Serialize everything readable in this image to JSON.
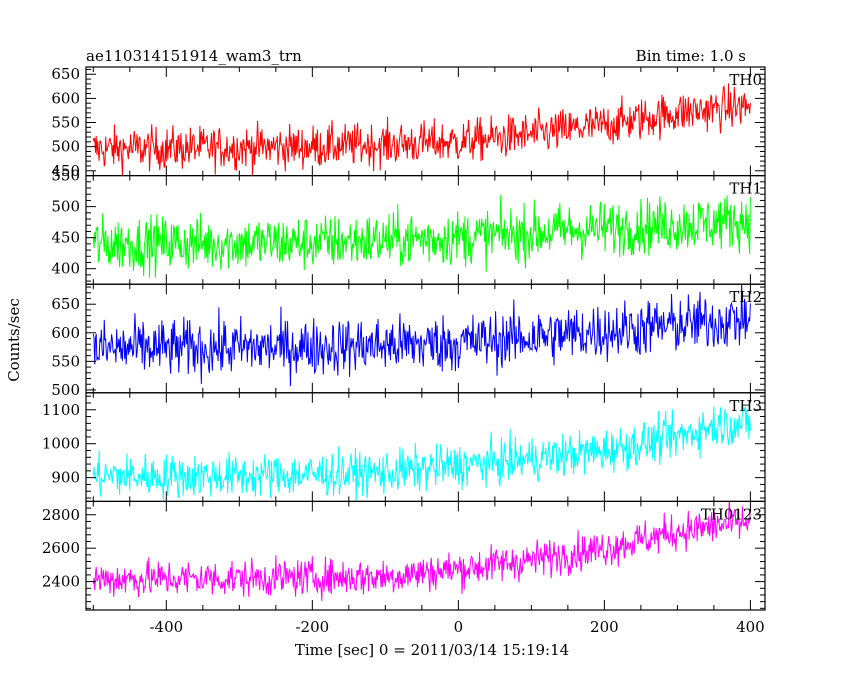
{
  "chart_data": {
    "type": "line",
    "title": "ae110314151914_wam3_trn",
    "bin_time_label": "Bin time: 1.0 s",
    "xlabel": "Time [sec] 0 = 2011/03/14 15:19:14",
    "ylabel": "Counts/sec",
    "xlim": [
      -510,
      420
    ],
    "x_ticks": [
      -400,
      -200,
      0,
      200,
      400
    ],
    "x_start": -500,
    "x_end": 400,
    "panels": [
      {
        "name": "TH0",
        "color": "#ff0000",
        "ylim": [
          440,
          665
        ],
        "y_ticks": [
          450,
          500,
          550,
          600,
          650
        ],
        "trend": [
          [
            -500,
            495
          ],
          [
            -200,
            500
          ],
          [
            0,
            510
          ],
          [
            100,
            525
          ],
          [
            200,
            545
          ],
          [
            300,
            570
          ],
          [
            400,
            585
          ]
        ],
        "noise": 22
      },
      {
        "name": "TH1",
        "color": "#00ff00",
        "ylim": [
          375,
          550
        ],
        "y_ticks": [
          400,
          450,
          500,
          550
        ],
        "trend": [
          [
            -500,
            440
          ],
          [
            -200,
            442
          ],
          [
            0,
            450
          ],
          [
            200,
            465
          ],
          [
            400,
            478
          ]
        ],
        "noise": 22
      },
      {
        "name": "TH2",
        "color": "#0000ff",
        "ylim": [
          495,
          685
        ],
        "y_ticks": [
          500,
          550,
          600,
          650
        ],
        "trend": [
          [
            -500,
            572
          ],
          [
            -200,
            575
          ],
          [
            0,
            582
          ],
          [
            200,
            603
          ],
          [
            400,
            625
          ]
        ],
        "noise": 25
      },
      {
        "name": "TH3",
        "color": "#00ffff",
        "ylim": [
          830,
          1150
        ],
        "y_ticks": [
          900,
          1000,
          1100
        ],
        "trend": [
          [
            -500,
            905
          ],
          [
            -300,
            905
          ],
          [
            -100,
            915
          ],
          [
            0,
            935
          ],
          [
            100,
            955
          ],
          [
            200,
            980
          ],
          [
            300,
            1020
          ],
          [
            350,
            1055
          ],
          [
            400,
            1060
          ]
        ],
        "noise": 32
      },
      {
        "name": "TH0123",
        "color": "#ff00ff",
        "ylim": [
          2230,
          2880
        ],
        "y_ticks": [
          2400,
          2600,
          2800
        ],
        "trend": [
          [
            -500,
            2415
          ],
          [
            -300,
            2420
          ],
          [
            -100,
            2430
          ],
          [
            0,
            2475
          ],
          [
            100,
            2530
          ],
          [
            200,
            2600
          ],
          [
            300,
            2700
          ],
          [
            400,
            2760
          ]
        ],
        "noise": 55
      }
    ]
  }
}
